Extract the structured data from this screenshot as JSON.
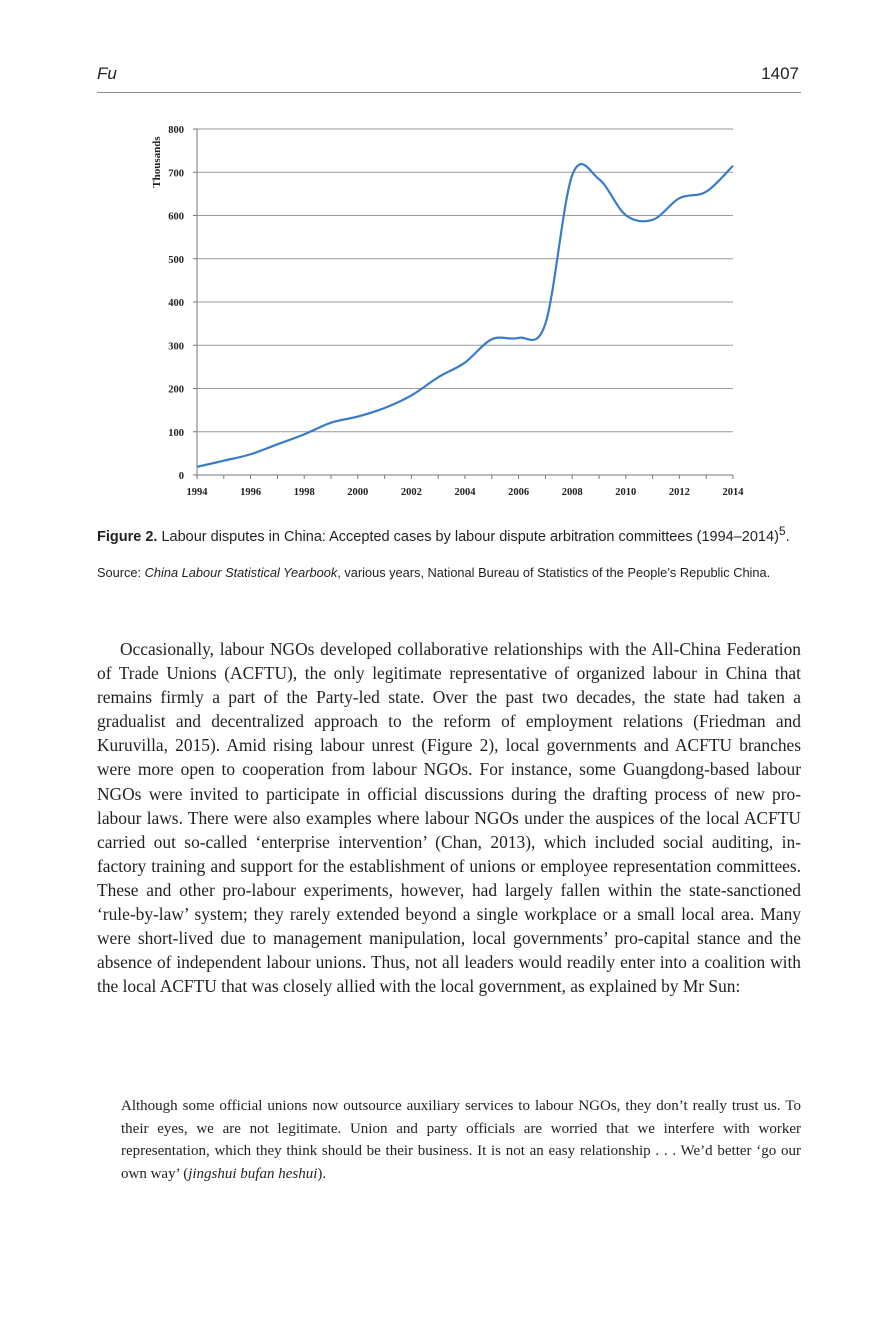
{
  "header": {
    "running_head": "Fu",
    "page_number": "1407"
  },
  "chart_data": {
    "type": "line",
    "ylabel": "Thousands",
    "xlabel": "",
    "x": [
      1994,
      1995,
      1996,
      1997,
      1998,
      1999,
      2000,
      2001,
      2002,
      2003,
      2004,
      2005,
      2006,
      2007,
      2008,
      2009,
      2010,
      2011,
      2012,
      2013,
      2014
    ],
    "series": [
      {
        "values": [
          19,
          33,
          48,
          71,
          94,
          121,
          135,
          155,
          184,
          226,
          260,
          314,
          317,
          350,
          693,
          684,
          601,
          590,
          640,
          655,
          715
        ]
      }
    ],
    "xticks": [
      "1994",
      "1996",
      "1998",
      "2000",
      "2002",
      "2004",
      "2006",
      "2008",
      "2010",
      "2012",
      "2014"
    ],
    "yticks": [
      "0",
      "100",
      "200",
      "300",
      "400",
      "500",
      "600",
      "700",
      "800"
    ],
    "xlim": [
      1994,
      2014
    ],
    "ylim": [
      0,
      800
    ],
    "grid": "horizontal",
    "line_color": "#3a7bc8"
  },
  "figure": {
    "caption_label": "Figure 2.",
    "caption_text": "Labour disputes in China: Accepted cases by labour dispute arbitration committees (1994–2014)",
    "caption_sup": "5",
    "caption_end": ".",
    "source_prefix": "Source: ",
    "source_title": "China Labour Statistical Yearbook",
    "source_rest": ", various years, National Bureau of Statistics of the People’s Republic China."
  },
  "body": {
    "paragraph": "Occasionally, labour NGOs developed collaborative relationships with the All-China Federation of Trade Unions (ACFTU), the only legitimate representative of organized labour in China that remains firmly a part of the Party-led state. Over the past two decades, the state had taken a gradualist and decentralized approach to the reform of employment relations (Friedman and Kuruvilla, 2015). Amid rising labour unrest (Figure 2), local governments and ACFTU branches were more open to cooperation from labour NGOs. For instance, some Guangdong-based labour NGOs were invited to participate in official discussions during the drafting process of new pro-labour laws. There were also examples where labour NGOs under the auspices of the local ACFTU carried out so-called ‘enterprise intervention’ (Chan, 2013), which included social auditing, in-factory training and support for the establishment of unions or employee representation committees. These and other pro-labour experiments, however, had largely fallen within the state-sanctioned ‘rule-by-law’ system; they rarely extended beyond a single workplace or a small local area. Many were short-lived due to management manipulation, local governments’ pro-capital stance and the absence of independent labour unions. Thus, not all leaders would readily enter into a coalition with the local ACFTU that was closely allied with the local government, as explained by Mr Sun:",
    "quote_main": "Although some official unions now outsource auxiliary services to labour NGOs, they don’t really trust us. To their eyes, we are not legitimate. Union and party officials are worried that we interfere with worker representation, which they think should be their business. It is not an easy relationship . . . We’d better ‘go our own way’ (",
    "quote_italic": "jingshui bufan heshui",
    "quote_end": ")."
  }
}
